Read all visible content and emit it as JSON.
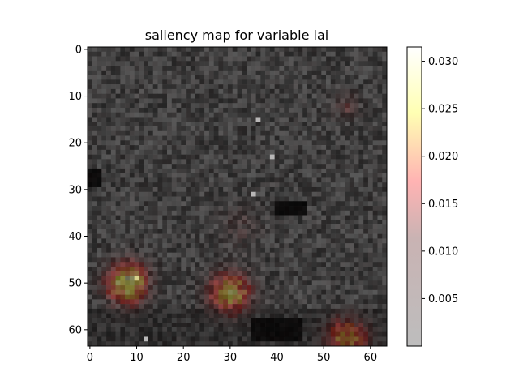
{
  "chart_data": {
    "type": "heatmap",
    "title": "saliency map for variable lai",
    "grid_size": [
      64,
      64
    ],
    "xlabel": "",
    "ylabel": "",
    "xlim": [
      -0.5,
      63.5
    ],
    "ylim": [
      63.5,
      -0.5
    ],
    "x_ticks": [
      0,
      10,
      20,
      30,
      40,
      50,
      60
    ],
    "y_ticks": [
      0,
      10,
      20,
      30,
      40,
      50,
      60
    ],
    "x_tick_labels": [
      "0",
      "10",
      "20",
      "30",
      "40",
      "50",
      "60"
    ],
    "y_tick_labels": [
      "0",
      "10",
      "20",
      "30",
      "40",
      "50",
      "60"
    ],
    "colorbar": {
      "range": [
        0.0,
        0.0315
      ],
      "ticks": [
        0.005,
        0.01,
        0.015,
        0.02,
        0.025,
        0.03
      ],
      "tick_labels": [
        "0.005",
        "0.010",
        "0.015",
        "0.020",
        "0.025",
        "0.030"
      ],
      "colormap": "hot",
      "alpha": 0.3
    },
    "base_layer": "grayscale lai input field (dark, mean ~0.25 intensity)",
    "saliency_hotspots": [
      {
        "row": 50,
        "col": 8,
        "peak": 0.03,
        "radius": 3
      },
      {
        "row": 52,
        "col": 30,
        "peak": 0.025,
        "radius": 3
      },
      {
        "row": 62,
        "col": 55,
        "peak": 0.022,
        "radius": 3
      },
      {
        "row": 12,
        "col": 55,
        "peak": 0.006,
        "radius": 2
      },
      {
        "row": 38,
        "col": 32,
        "peak": 0.004,
        "radius": 3
      }
    ],
    "dark_patches": [
      {
        "row0": 26,
        "row1": 29,
        "col0": 0,
        "col1": 2
      },
      {
        "row0": 33,
        "row1": 35,
        "col0": 40,
        "col1": 46
      },
      {
        "row0": 58,
        "row1": 62,
        "col0": 35,
        "col1": 45
      }
    ],
    "bright_pixels": [
      {
        "row": 15,
        "col": 36
      },
      {
        "row": 23,
        "col": 39
      },
      {
        "row": 31,
        "col": 35
      },
      {
        "row": 49,
        "col": 10
      },
      {
        "row": 62,
        "col": 12
      }
    ]
  }
}
